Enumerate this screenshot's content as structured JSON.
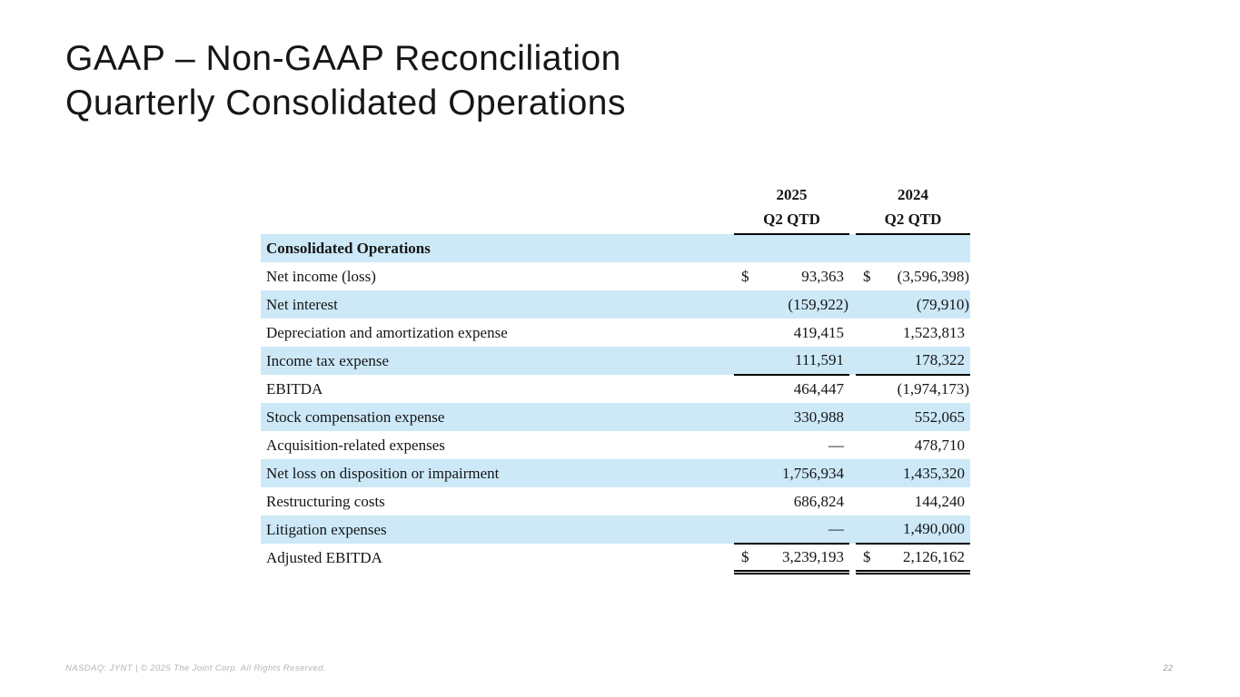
{
  "slide": {
    "title_line1": "GAAP – Non-GAAP Reconciliation",
    "title_line2": "Quarterly Consolidated Operations",
    "footer_left": "NASDAQ: JYNT   |  © 2025 The Joint Corp. All Rights Reserved.",
    "page_number": "22"
  },
  "colors": {
    "band_blue": "#cde9f8",
    "rule_black": "#000000",
    "title_text": "#161616"
  },
  "table": {
    "columns": [
      {
        "year": "2025",
        "period": "Q2 QTD"
      },
      {
        "year": "2024",
        "period": "Q2 QTD"
      }
    ],
    "section_header": "Consolidated Operations",
    "rows": [
      {
        "label": "Net income (loss)",
        "currency": [
          "$",
          "$"
        ],
        "values": [
          "93,363",
          "(3,596,398)"
        ],
        "rule_below": "none"
      },
      {
        "label": "Net interest",
        "currency": [
          "",
          ""
        ],
        "values": [
          "(159,922)",
          "(79,910)"
        ],
        "rule_below": "none"
      },
      {
        "label": "Depreciation and amortization expense",
        "currency": [
          "",
          ""
        ],
        "values": [
          "419,415",
          "1,523,813"
        ],
        "rule_below": "none"
      },
      {
        "label": "Income tax expense",
        "currency": [
          "",
          ""
        ],
        "values": [
          "111,591",
          "178,322"
        ],
        "rule_below": "single"
      },
      {
        "label": "EBITDA",
        "currency": [
          "",
          ""
        ],
        "values": [
          "464,447",
          "(1,974,173)"
        ],
        "rule_below": "none"
      },
      {
        "label": "Stock compensation expense",
        "currency": [
          "",
          ""
        ],
        "values": [
          "330,988",
          "552,065"
        ],
        "rule_below": "none"
      },
      {
        "label": "Acquisition-related expenses",
        "currency": [
          "",
          ""
        ],
        "values": [
          "—",
          "478,710"
        ],
        "rule_below": "none"
      },
      {
        "label": "Net loss on disposition or impairment",
        "currency": [
          "",
          ""
        ],
        "values": [
          "1,756,934",
          "1,435,320"
        ],
        "rule_below": "none"
      },
      {
        "label": "Restructuring costs",
        "currency": [
          "",
          ""
        ],
        "values": [
          "686,824",
          "144,240"
        ],
        "rule_below": "none"
      },
      {
        "label": "Litigation expenses",
        "currency": [
          "",
          ""
        ],
        "values": [
          "—",
          "1,490,000"
        ],
        "rule_below": "single"
      },
      {
        "label": "Adjusted EBITDA",
        "currency": [
          "$",
          "$"
        ],
        "values": [
          "3,239,193",
          "2,126,162"
        ],
        "rule_below": "double"
      }
    ]
  }
}
